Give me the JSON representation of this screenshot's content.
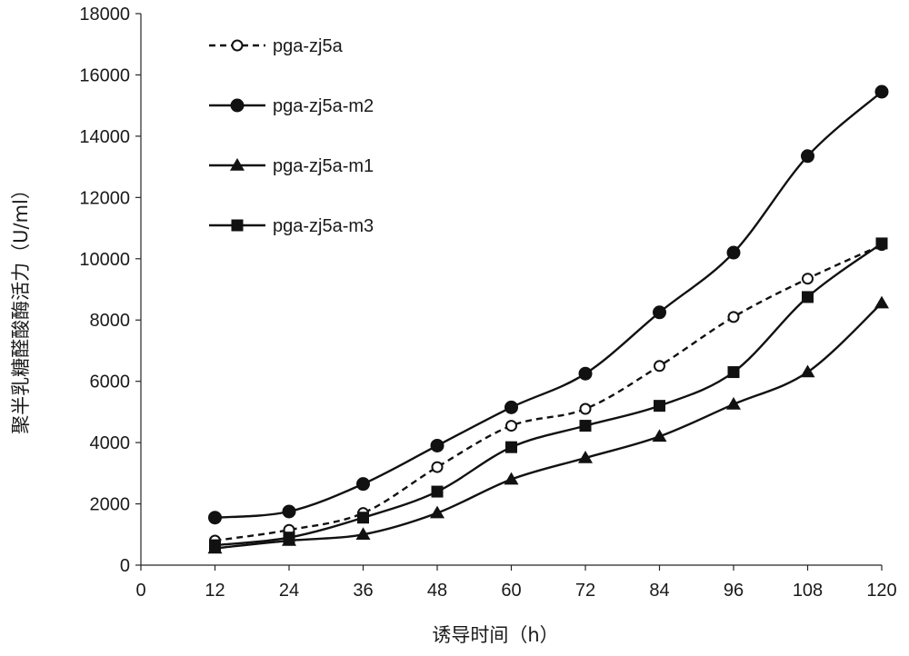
{
  "chart_data": {
    "type": "line",
    "title": "",
    "xlabel": "诱导时间（h）",
    "ylabel": "聚半乳糖醛酸酶活力（U/ml）",
    "x": [
      12,
      24,
      36,
      48,
      60,
      72,
      84,
      96,
      108,
      120
    ],
    "xticks": [
      0,
      12,
      24,
      36,
      48,
      60,
      72,
      84,
      96,
      108,
      120
    ],
    "xlim": [
      0,
      120
    ],
    "yticks": [
      0,
      2000,
      4000,
      6000,
      8000,
      10000,
      12000,
      14000,
      16000,
      18000
    ],
    "ylim": [
      0,
      18000
    ],
    "grid": false,
    "legend_position": "top-left",
    "series": [
      {
        "name": "pga-zj5a",
        "marker": "open-circle",
        "dashed": true,
        "values": [
          800,
          1150,
          1700,
          3200,
          4550,
          5100,
          6500,
          8100,
          9350,
          10450
        ]
      },
      {
        "name": "pga-zj5a-m2",
        "marker": "filled-circle",
        "dashed": false,
        "values": [
          1550,
          1750,
          2650,
          3900,
          5150,
          6250,
          8250,
          10200,
          13350,
          15450
        ]
      },
      {
        "name": "pga-zj5a-m1",
        "marker": "triangle",
        "dashed": false,
        "values": [
          550,
          800,
          1000,
          1700,
          2800,
          3500,
          4200,
          5250,
          6300,
          8550
        ]
      },
      {
        "name": "pga-zj5a-m3",
        "marker": "square",
        "dashed": false,
        "values": [
          650,
          900,
          1550,
          2400,
          3850,
          4550,
          5200,
          6300,
          8750,
          10500
        ]
      }
    ]
  }
}
